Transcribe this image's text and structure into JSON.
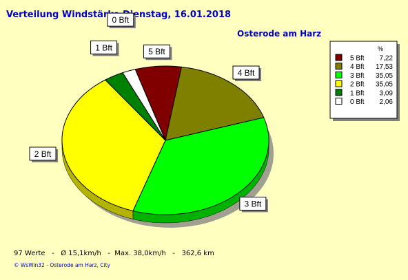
{
  "chart_data": {
    "type": "pie",
    "title": "Verteilung Windstärke  Dienstag, 16.01.2018",
    "subtitle": "Osterode am Harz",
    "legend_header": "%",
    "legend_position": "top-right",
    "slices": [
      {
        "label": "5 Bft",
        "value": 7.22,
        "value_text": "7,22",
        "color": "#800000"
      },
      {
        "label": "4 Bft",
        "value": 17.53,
        "value_text": "17,53",
        "color": "#808000"
      },
      {
        "label": "3 Bft",
        "value": 35.05,
        "value_text": "35,05",
        "color": "#00ff00"
      },
      {
        "label": "2 Bft",
        "value": 35.05,
        "value_text": "35,05",
        "color": "#ffff00"
      },
      {
        "label": "1 Bft",
        "value": 3.09,
        "value_text": "3,09",
        "color": "#008000"
      },
      {
        "label": "0 Bft",
        "value": 2.06,
        "value_text": "2,06",
        "color": "#ffffff"
      }
    ]
  },
  "footer": {
    "stats": "97 Werte   -   Ø 15,1km/h   -  Max. 38,0km/h   -   362,6 km",
    "credit": "© WsWin32  -  Osterode am Harz, City"
  }
}
